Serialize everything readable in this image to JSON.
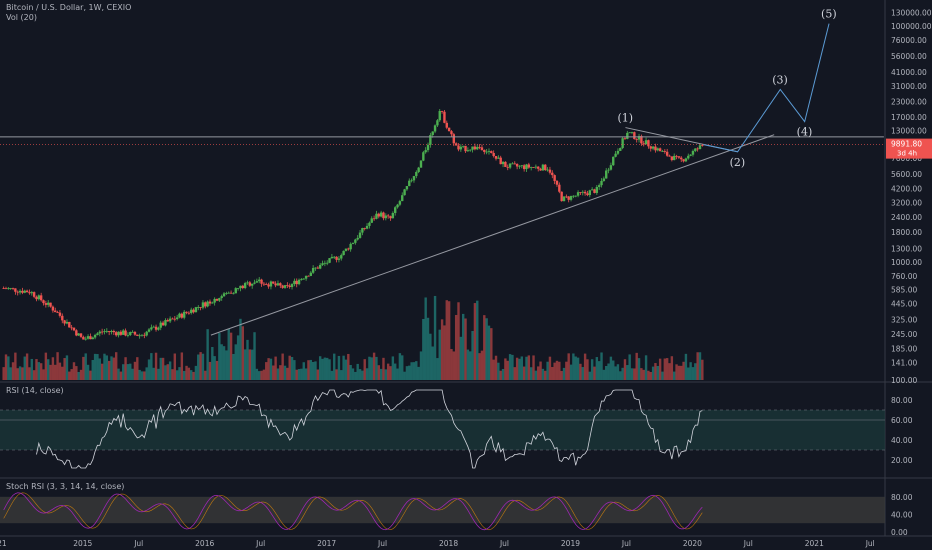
{
  "header": {
    "symbol_line": "Bitcoin / U.S. Dollar, 1W, CEXIO",
    "volume_label": "Vol (20)"
  },
  "price_badge": {
    "value": "9891.80",
    "countdown": "3d 4h",
    "color": "#ef5350"
  },
  "colors": {
    "background": "#131722",
    "up": "#26a69a",
    "down": "#ef5350",
    "candle_up": "#4caf50",
    "rsi_line": "#d1d4dc",
    "rsi_band": "#1b3a3a",
    "stoch_k": "#9c27b0",
    "stoch_d": "#ff9800",
    "stoch_band": "#3a3a3a",
    "trend_line": "#9598a1",
    "resistance_line": "#9598a1",
    "price_line": "#ef5350"
  },
  "rsi_pane": {
    "label": "RSI (14, close)",
    "ticks": [
      "80.00",
      "60.00",
      "40.00",
      "20.00"
    ]
  },
  "stoch_pane": {
    "label": "Stoch RSI (3, 3, 14, 14, close)",
    "ticks": [
      "80.00",
      "40.00",
      "0.00"
    ]
  },
  "chart_data": {
    "type": "candlestick",
    "scale": "log",
    "price_axis_ticks": [
      "130000.00",
      "100000.00",
      "76000.00",
      "56000.00",
      "41000.00",
      "31000.00",
      "23000.00",
      "17000.00",
      "13000.00",
      "9891.80",
      "7600.00",
      "5600.00",
      "4200.00",
      "3200.00",
      "2400.00",
      "1800.00",
      "1300.00",
      "1000.00",
      "760.00",
      "585.00",
      "445.00",
      "325.00",
      "245.00",
      "185.00",
      "141.00",
      "100.00"
    ],
    "x_axis_ticks": [
      "21",
      "2015",
      "Jul",
      "2016",
      "Jul",
      "2017",
      "Jul",
      "2018",
      "Jul",
      "2019",
      "Jul",
      "2020",
      "Jul",
      "2021",
      "Jul"
    ],
    "anchor_prices": [
      {
        "t": 2014.38,
        "p": 600
      },
      {
        "t": 2014.6,
        "p": 560
      },
      {
        "t": 2014.8,
        "p": 390
      },
      {
        "t": 2015.03,
        "p": 220
      },
      {
        "t": 2015.2,
        "p": 260
      },
      {
        "t": 2015.5,
        "p": 240
      },
      {
        "t": 2015.85,
        "p": 360
      },
      {
        "t": 2016.0,
        "p": 430
      },
      {
        "t": 2016.45,
        "p": 700
      },
      {
        "t": 2016.7,
        "p": 600
      },
      {
        "t": 2016.95,
        "p": 900
      },
      {
        "t": 2017.15,
        "p": 1150
      },
      {
        "t": 2017.45,
        "p": 2600
      },
      {
        "t": 2017.55,
        "p": 2300
      },
      {
        "t": 2017.7,
        "p": 4500
      },
      {
        "t": 2017.8,
        "p": 7000
      },
      {
        "t": 2017.96,
        "p": 19500
      },
      {
        "t": 2018.1,
        "p": 9000
      },
      {
        "t": 2018.3,
        "p": 9500
      },
      {
        "t": 2018.5,
        "p": 6500
      },
      {
        "t": 2018.85,
        "p": 6300
      },
      {
        "t": 2018.96,
        "p": 3400
      },
      {
        "t": 2019.25,
        "p": 4100
      },
      {
        "t": 2019.4,
        "p": 8500
      },
      {
        "t": 2019.5,
        "p": 12500
      },
      {
        "t": 2019.65,
        "p": 10200
      },
      {
        "t": 2019.8,
        "p": 8300
      },
      {
        "t": 2019.93,
        "p": 7200
      },
      {
        "t": 2020.12,
        "p": 9890
      }
    ],
    "support_trendline": [
      {
        "t": 2016.08,
        "p": 240
      },
      {
        "t": 2020.7,
        "p": 12000
      }
    ],
    "resistance_line": [
      {
        "t": 2014.35,
        "p": 11500
      },
      {
        "t": 2021.6,
        "p": 11500
      }
    ],
    "wave_projection": [
      {
        "label": "(1)",
        "t": 2019.48,
        "p": 13800
      },
      {
        "label": "(2)",
        "t": 2020.4,
        "p": 8600
      },
      {
        "label": "(3)",
        "t": 2020.75,
        "p": 29000
      },
      {
        "label": "(4)",
        "t": 2020.95,
        "p": 15500
      },
      {
        "label": "(5)",
        "t": 2021.15,
        "p": 105000
      }
    ],
    "upper_wedge_line": [
      {
        "t": 2019.48,
        "p": 13800
      },
      {
        "t": 2020.4,
        "p": 8600
      }
    ],
    "rsi_band": [
      30,
      70
    ],
    "rsi_mid": 60,
    "stoch_band": [
      20,
      80
    ]
  }
}
